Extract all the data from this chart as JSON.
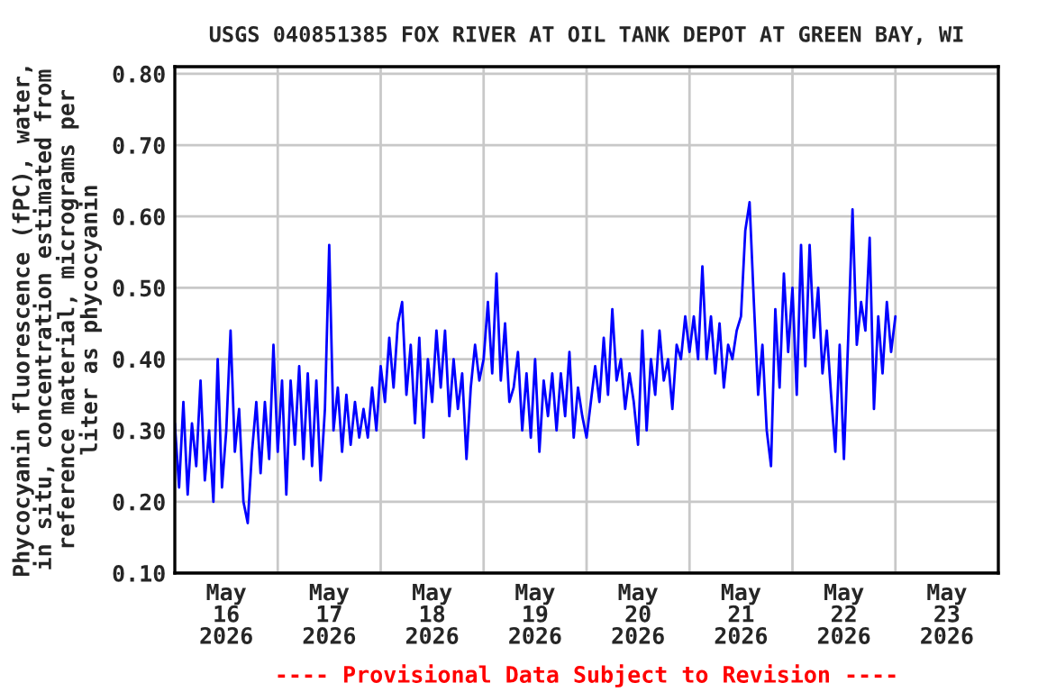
{
  "chart_data": {
    "type": "line",
    "title": "USGS 040851385 FOX RIVER AT OIL TANK DEPOT AT GREEN BAY, WI",
    "ylabel": "Phycocyanin fluorescence (fPC), water,\nin situ, concentration estimated from\nreference material, micrograms per\nliter as phycocyanin",
    "annotations": [
      "---- Provisional Data Subject to Revision ----"
    ],
    "series": [
      {
        "color": "#0000ff",
        "x": [
          "2026-05-16T00:00",
          "2026-05-16T01:00",
          "2026-05-16T02:00",
          "2026-05-16T03:00",
          "2026-05-16T04:00",
          "2026-05-16T05:00",
          "2026-05-16T06:00",
          "2026-05-16T07:00",
          "2026-05-16T08:00",
          "2026-05-16T09:00",
          "2026-05-16T10:00",
          "2026-05-16T11:00",
          "2026-05-16T12:00",
          "2026-05-16T13:00",
          "2026-05-16T14:00",
          "2026-05-16T15:00",
          "2026-05-16T16:00",
          "2026-05-16T17:00",
          "2026-05-16T18:00",
          "2026-05-16T19:00",
          "2026-05-16T20:00",
          "2026-05-16T21:00",
          "2026-05-16T22:00",
          "2026-05-16T23:00",
          "2026-05-17T00:00",
          "2026-05-17T01:00",
          "2026-05-17T02:00",
          "2026-05-17T03:00",
          "2026-05-17T04:00",
          "2026-05-17T05:00",
          "2026-05-17T06:00",
          "2026-05-17T07:00",
          "2026-05-17T08:00",
          "2026-05-17T09:00",
          "2026-05-17T10:00",
          "2026-05-17T11:00",
          "2026-05-17T12:00",
          "2026-05-17T13:00",
          "2026-05-17T14:00",
          "2026-05-17T15:00",
          "2026-05-17T16:00",
          "2026-05-17T17:00",
          "2026-05-17T18:00",
          "2026-05-17T19:00",
          "2026-05-17T20:00",
          "2026-05-17T21:00",
          "2026-05-17T22:00",
          "2026-05-17T23:00",
          "2026-05-18T00:00",
          "2026-05-18T01:00",
          "2026-05-18T02:00",
          "2026-05-18T03:00",
          "2026-05-18T04:00",
          "2026-05-18T05:00",
          "2026-05-18T06:00",
          "2026-05-18T07:00",
          "2026-05-18T08:00",
          "2026-05-18T09:00",
          "2026-05-18T10:00",
          "2026-05-18T11:00",
          "2026-05-18T12:00",
          "2026-05-18T13:00",
          "2026-05-18T14:00",
          "2026-05-18T15:00",
          "2026-05-18T16:00",
          "2026-05-18T17:00",
          "2026-05-18T18:00",
          "2026-05-18T19:00",
          "2026-05-18T20:00",
          "2026-05-18T21:00",
          "2026-05-18T22:00",
          "2026-05-18T23:00",
          "2026-05-19T00:00",
          "2026-05-19T01:00",
          "2026-05-19T02:00",
          "2026-05-19T03:00",
          "2026-05-19T04:00",
          "2026-05-19T05:00",
          "2026-05-19T06:00",
          "2026-05-19T07:00",
          "2026-05-19T08:00",
          "2026-05-19T09:00",
          "2026-05-19T10:00",
          "2026-05-19T11:00",
          "2026-05-19T12:00",
          "2026-05-19T13:00",
          "2026-05-19T14:00",
          "2026-05-19T15:00",
          "2026-05-19T16:00",
          "2026-05-19T17:00",
          "2026-05-19T18:00",
          "2026-05-19T19:00",
          "2026-05-19T20:00",
          "2026-05-19T21:00",
          "2026-05-19T22:00",
          "2026-05-19T23:00",
          "2026-05-20T00:00",
          "2026-05-20T01:00",
          "2026-05-20T02:00",
          "2026-05-20T03:00",
          "2026-05-20T04:00",
          "2026-05-20T05:00",
          "2026-05-20T06:00",
          "2026-05-20T07:00",
          "2026-05-20T08:00",
          "2026-05-20T09:00",
          "2026-05-20T10:00",
          "2026-05-20T11:00",
          "2026-05-20T12:00",
          "2026-05-20T13:00",
          "2026-05-20T14:00",
          "2026-05-20T15:00",
          "2026-05-20T16:00",
          "2026-05-20T17:00",
          "2026-05-20T18:00",
          "2026-05-20T19:00",
          "2026-05-20T20:00",
          "2026-05-20T21:00",
          "2026-05-20T22:00",
          "2026-05-20T23:00",
          "2026-05-21T00:00",
          "2026-05-21T01:00",
          "2026-05-21T02:00",
          "2026-05-21T03:00",
          "2026-05-21T04:00",
          "2026-05-21T05:00",
          "2026-05-21T06:00",
          "2026-05-21T07:00",
          "2026-05-21T08:00",
          "2026-05-21T09:00",
          "2026-05-21T10:00",
          "2026-05-21T11:00",
          "2026-05-21T12:00",
          "2026-05-21T13:00",
          "2026-05-21T14:00",
          "2026-05-21T15:00",
          "2026-05-21T16:00",
          "2026-05-21T17:00",
          "2026-05-21T18:00",
          "2026-05-21T19:00",
          "2026-05-21T20:00",
          "2026-05-21T21:00",
          "2026-05-21T22:00",
          "2026-05-21T23:00",
          "2026-05-22T00:00",
          "2026-05-22T01:00",
          "2026-05-22T02:00",
          "2026-05-22T03:00",
          "2026-05-22T04:00",
          "2026-05-22T05:00",
          "2026-05-22T06:00",
          "2026-05-22T07:00",
          "2026-05-22T08:00",
          "2026-05-22T09:00",
          "2026-05-22T10:00",
          "2026-05-22T11:00",
          "2026-05-22T12:00",
          "2026-05-22T13:00",
          "2026-05-22T14:00",
          "2026-05-22T15:00",
          "2026-05-22T16:00",
          "2026-05-22T17:00",
          "2026-05-22T18:00",
          "2026-05-22T19:00",
          "2026-05-22T20:00",
          "2026-05-22T21:00",
          "2026-05-22T22:00",
          "2026-05-22T23:00",
          "2026-05-23T00:00"
        ],
        "values": [
          0.31,
          0.22,
          0.34,
          0.21,
          0.31,
          0.25,
          0.37,
          0.23,
          0.3,
          0.2,
          0.4,
          0.22,
          0.3,
          0.44,
          0.27,
          0.33,
          0.2,
          0.17,
          0.27,
          0.34,
          0.24,
          0.34,
          0.26,
          0.42,
          0.27,
          0.37,
          0.21,
          0.37,
          0.28,
          0.39,
          0.26,
          0.38,
          0.25,
          0.37,
          0.23,
          0.33,
          0.56,
          0.3,
          0.36,
          0.27,
          0.35,
          0.28,
          0.34,
          0.29,
          0.33,
          0.29,
          0.36,
          0.3,
          0.39,
          0.34,
          0.43,
          0.36,
          0.45,
          0.48,
          0.35,
          0.42,
          0.31,
          0.43,
          0.29,
          0.4,
          0.34,
          0.44,
          0.36,
          0.44,
          0.32,
          0.4,
          0.33,
          0.38,
          0.26,
          0.36,
          0.42,
          0.37,
          0.4,
          0.48,
          0.38,
          0.52,
          0.37,
          0.45,
          0.34,
          0.36,
          0.41,
          0.3,
          0.38,
          0.29,
          0.4,
          0.27,
          0.37,
          0.32,
          0.38,
          0.3,
          0.38,
          0.32,
          0.41,
          0.29,
          0.36,
          0.32,
          0.29,
          0.34,
          0.39,
          0.34,
          0.43,
          0.35,
          0.47,
          0.37,
          0.4,
          0.33,
          0.38,
          0.34,
          0.28,
          0.44,
          0.3,
          0.4,
          0.35,
          0.44,
          0.37,
          0.4,
          0.33,
          0.42,
          0.4,
          0.46,
          0.41,
          0.46,
          0.4,
          0.53,
          0.4,
          0.46,
          0.38,
          0.45,
          0.36,
          0.42,
          0.4,
          0.44,
          0.46,
          0.58,
          0.62,
          0.48,
          0.35,
          0.42,
          0.3,
          0.25,
          0.47,
          0.36,
          0.52,
          0.41,
          0.5,
          0.35,
          0.56,
          0.39,
          0.56,
          0.43,
          0.5,
          0.38,
          0.44,
          0.35,
          0.27,
          0.42,
          0.26,
          0.43,
          0.61,
          0.42,
          0.48,
          0.44,
          0.57,
          0.33,
          0.46,
          0.38,
          0.48,
          0.41,
          0.46
        ]
      }
    ],
    "xlim": [
      "2026-05-16T00:00",
      "2026-05-24T00:00"
    ],
    "xticks": [
      {
        "value": "2026-05-16T00:00",
        "label": null
      },
      {
        "value": "2026-05-16T12:00",
        "label": "May\n16\n2026"
      },
      {
        "value": "2026-05-17T00:00",
        "label": null
      },
      {
        "value": "2026-05-17T12:00",
        "label": "May\n17\n2026"
      },
      {
        "value": "2026-05-18T00:00",
        "label": null
      },
      {
        "value": "2026-05-18T12:00",
        "label": "May\n18\n2026"
      },
      {
        "value": "2026-05-19T00:00",
        "label": null
      },
      {
        "value": "2026-05-19T12:00",
        "label": "May\n19\n2026"
      },
      {
        "value": "2026-05-20T00:00",
        "label": null
      },
      {
        "value": "2026-05-20T12:00",
        "label": "May\n20\n2026"
      },
      {
        "value": "2026-05-21T00:00",
        "label": null
      },
      {
        "value": "2026-05-21T12:00",
        "label": "May\n21\n2026"
      },
      {
        "value": "2026-05-22T00:00",
        "label": null
      },
      {
        "value": "2026-05-22T12:00",
        "label": "May\n22\n2026"
      },
      {
        "value": "2026-05-23T00:00",
        "label": null
      },
      {
        "value": "2026-05-23T12:00",
        "label": "May\n23\n2026"
      },
      {
        "value": "2026-05-24T00:00",
        "label": null
      }
    ],
    "ylim": [
      0.1,
      0.81
    ],
    "yticks": [
      {
        "value": 0.1,
        "label": "0.10"
      },
      {
        "value": 0.2,
        "label": "0.20"
      },
      {
        "value": 0.3,
        "label": "0.30"
      },
      {
        "value": 0.4,
        "label": "0.40"
      },
      {
        "value": 0.5,
        "label": "0.50"
      },
      {
        "value": 0.6,
        "label": "0.60"
      },
      {
        "value": 0.7,
        "label": "0.70"
      },
      {
        "value": 0.8,
        "label": "0.80"
      }
    ],
    "grid": true,
    "line_style": "solid",
    "marker": "none"
  }
}
